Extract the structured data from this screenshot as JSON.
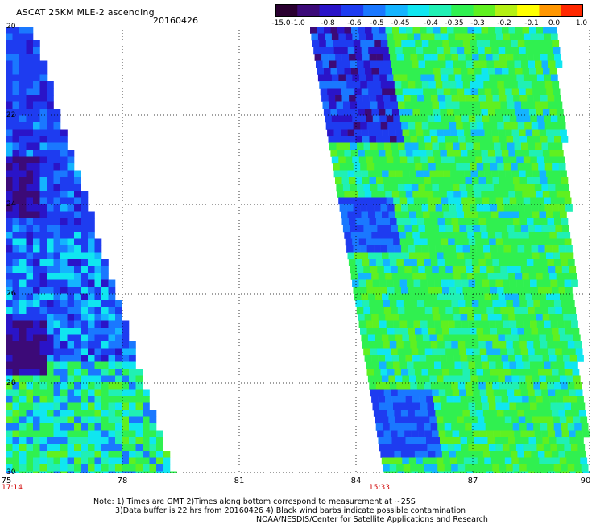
{
  "header": {
    "title": "ASCAT 25KM MLE-2 ascending",
    "date": "20160426"
  },
  "colorbar": {
    "labels": [
      "-15.0",
      "-1.0",
      "-0.8",
      "-0.6",
      "-0.5",
      "-0.45",
      "-0.4",
      "-0.35",
      "-0.3",
      "-0.2",
      "-0.1",
      "0.0",
      "1.0"
    ],
    "colors": [
      "#2a0030",
      "#3c0a78",
      "#2a14c8",
      "#1e3cf0",
      "#1a78ff",
      "#14b4ff",
      "#10e6f0",
      "#20f0b4",
      "#30f050",
      "#60f020",
      "#b4f014",
      "#ffff00",
      "#ff9600",
      "#ff2800"
    ]
  },
  "axes": {
    "y_labels": [
      "20",
      "22",
      "24",
      "26",
      "28",
      "30"
    ],
    "x_labels": [
      "75",
      "78",
      "81",
      "84",
      "87",
      "90"
    ]
  },
  "time_labels": {
    "left": "17:14",
    "right": "15:33"
  },
  "notes": {
    "line1": "Note: 1) Times are GMT 2)Times along bottom correspond to measurement at ~25S",
    "line2": "3)Data buffer is 22 hrs from 20160426 4) Black wind barbs indicate possible contamination",
    "line3": "NOAA/NESDIS/Center for Satellite Applications and Research"
  },
  "map": {
    "swath_colors": [
      "#1e3cf0",
      "#1a78ff",
      "#14b4ff",
      "#10e6f0",
      "#20f0b4",
      "#30f050",
      "#60f020",
      "#2a14c8",
      "#3c0a78"
    ]
  }
}
